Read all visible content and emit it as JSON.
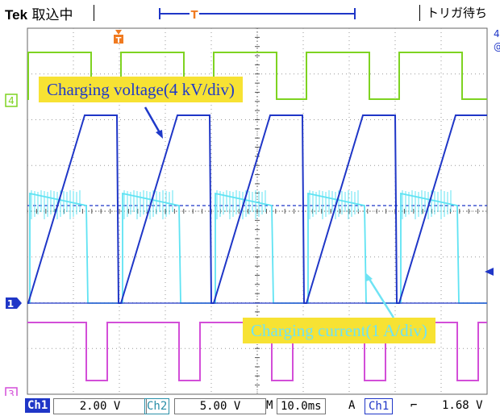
{
  "header": {
    "brand": "Tek",
    "mode": "取込中",
    "trigger_state": "トリガ待ち"
  },
  "channel_markers": {
    "ch4": "4",
    "ch1": "1",
    "ch3": "3"
  },
  "annotations": {
    "voltage": "Charging voltage(4 kV/div)",
    "current": "Charging current(1 A/div)"
  },
  "status_bar": {
    "ch1_label": "Ch1",
    "ch1_scale": "2.00 V",
    "ch2_label": "Ch2",
    "ch2_scale": "5.00 V",
    "timebase_prefix": "M",
    "timebase": "10.0ms",
    "trigger_mode": "A",
    "trigger_source": "Ch1",
    "trigger_slope": "⌐",
    "trigger_level": "1.68 V"
  },
  "colors": {
    "ch1": "#1f36c7",
    "ch2": "#5fe3f3",
    "ch3": "#d34ed8",
    "ch4": "#7ed321",
    "trigger": "#f07a20",
    "annotation_bg": "#f7e233"
  }
}
